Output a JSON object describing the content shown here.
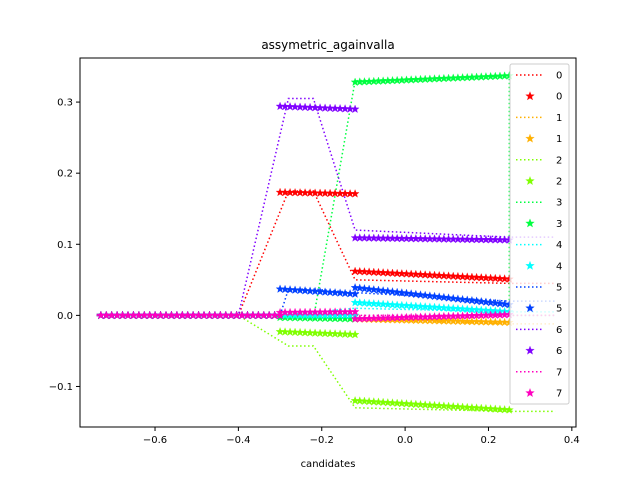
{
  "chart_data": {
    "type": "line",
    "title": "assymetric_againvalla",
    "xlabel": "candidates",
    "ylabel": "",
    "xlim": [
      -0.78,
      0.41
    ],
    "ylim": [
      -0.157,
      0.362
    ],
    "xticks": [
      -0.6,
      -0.4,
      -0.2,
      0.0,
      0.2,
      0.4
    ],
    "xtick_labels": [
      "−0.6",
      "−0.4",
      "−0.2",
      "0.0",
      "0.2",
      "0.4"
    ],
    "yticks": [
      -0.1,
      0.0,
      0.1,
      0.2,
      0.3
    ],
    "ytick_labels": [
      "−0.1",
      "0.0",
      "0.1",
      "0.2",
      "0.3"
    ],
    "grid": false,
    "legend_position": "top-right",
    "marker_segments": [
      {
        "x_start": -0.73,
        "x_end": -0.3,
        "count": 34
      },
      {
        "x_start": -0.3,
        "x_end": -0.12,
        "count": 16
      },
      {
        "x_start": -0.12,
        "x_end": 0.25,
        "count": 34
      }
    ],
    "series": [
      {
        "name": "0",
        "color": "#ff0000",
        "line": [
          [
            -0.74,
            0
          ],
          [
            -0.4,
            0
          ],
          [
            -0.28,
            0.175
          ],
          [
            -0.22,
            0.175
          ],
          [
            -0.12,
            0.05
          ],
          [
            0.25,
            0.045
          ],
          [
            0.36,
            0.045
          ]
        ],
        "markers": [
          [
            -0.73,
            0
          ],
          [
            -0.3,
            0
          ],
          [
            -0.3,
            0.173
          ],
          [
            -0.12,
            0.171
          ],
          [
            -0.12,
            0.062
          ],
          [
            0.25,
            0.051
          ]
        ]
      },
      {
        "name": "1",
        "color": "#ffb000",
        "line": [
          [
            -0.74,
            0
          ],
          [
            -0.3,
            0
          ],
          [
            -0.12,
            -0.005
          ],
          [
            0.25,
            -0.012
          ],
          [
            0.36,
            -0.012
          ]
        ],
        "markers": [
          [
            -0.73,
            0
          ],
          [
            -0.3,
            0
          ],
          [
            -0.3,
            0
          ],
          [
            -0.12,
            0
          ],
          [
            -0.12,
            -0.005
          ],
          [
            0.25,
            -0.01
          ]
        ]
      },
      {
        "name": "2",
        "color": "#7fff00",
        "line": [
          [
            -0.74,
            0
          ],
          [
            -0.4,
            0
          ],
          [
            -0.28,
            -0.043
          ],
          [
            -0.22,
            -0.043
          ],
          [
            -0.12,
            -0.13
          ],
          [
            0.25,
            -0.135
          ],
          [
            0.36,
            -0.135
          ]
        ],
        "markers": [
          [
            -0.73,
            0
          ],
          [
            -0.3,
            0
          ],
          [
            -0.3,
            -0.023
          ],
          [
            -0.12,
            -0.027
          ],
          [
            -0.12,
            -0.12
          ],
          [
            0.25,
            -0.133
          ]
        ]
      },
      {
        "name": "3",
        "color": "#00ff40",
        "line": [
          [
            -0.74,
            0
          ],
          [
            -0.3,
            0
          ],
          [
            -0.22,
            -0.005
          ],
          [
            -0.12,
            0.33
          ],
          [
            0.25,
            0.337
          ],
          [
            0.25,
            0
          ],
          [
            0.36,
            0
          ]
        ],
        "markers": [
          [
            -0.73,
            0
          ],
          [
            -0.3,
            0
          ],
          [
            -0.3,
            -0.003
          ],
          [
            -0.12,
            -0.005
          ],
          [
            -0.12,
            0.328
          ],
          [
            0.25,
            0.337
          ]
        ]
      },
      {
        "name": "4",
        "color": "#00ffff",
        "line": [
          [
            -0.74,
            0
          ],
          [
            -0.3,
            0
          ],
          [
            -0.12,
            0.01
          ],
          [
            0.25,
            0.005
          ],
          [
            0.36,
            0.005
          ]
        ],
        "markers": [
          [
            -0.73,
            0
          ],
          [
            -0.3,
            0
          ],
          [
            -0.3,
            0
          ],
          [
            -0.12,
            0
          ],
          [
            -0.12,
            0.018
          ],
          [
            0.25,
            0.005
          ]
        ]
      },
      {
        "name": "5",
        "color": "#0040ff",
        "line": [
          [
            -0.74,
            0
          ],
          [
            -0.3,
            0
          ],
          [
            -0.28,
            0.037
          ],
          [
            -0.22,
            0.037
          ],
          [
            -0.12,
            0.032
          ],
          [
            0.25,
            0.02
          ],
          [
            0.36,
            0.02
          ]
        ],
        "markers": [
          [
            -0.73,
            0
          ],
          [
            -0.3,
            0
          ],
          [
            -0.3,
            0.037
          ],
          [
            -0.12,
            0.03
          ],
          [
            -0.12,
            0.039
          ],
          [
            0.25,
            0.015
          ]
        ]
      },
      {
        "name": "6",
        "color": "#7f00ff",
        "line": [
          [
            -0.74,
            0
          ],
          [
            -0.4,
            0
          ],
          [
            -0.28,
            0.305
          ],
          [
            -0.22,
            0.305
          ],
          [
            -0.12,
            0.12
          ],
          [
            0.25,
            0.11
          ],
          [
            0.36,
            0.11
          ]
        ],
        "markers": [
          [
            -0.73,
            0
          ],
          [
            -0.3,
            0
          ],
          [
            -0.3,
            0.294
          ],
          [
            -0.12,
            0.29
          ],
          [
            -0.12,
            0.109
          ],
          [
            0.25,
            0.106
          ]
        ]
      },
      {
        "name": "7",
        "color": "#ff00bf",
        "line": [
          [
            -0.74,
            0
          ],
          [
            -0.3,
            0
          ],
          [
            -0.12,
            0
          ],
          [
            0.25,
            0
          ],
          [
            0.36,
            0
          ]
        ],
        "markers": [
          [
            -0.73,
            0
          ],
          [
            -0.3,
            0
          ],
          [
            -0.3,
            0.004
          ],
          [
            -0.12,
            0.005
          ],
          [
            -0.12,
            -0.005
          ],
          [
            0.25,
            0.001
          ]
        ]
      }
    ]
  }
}
